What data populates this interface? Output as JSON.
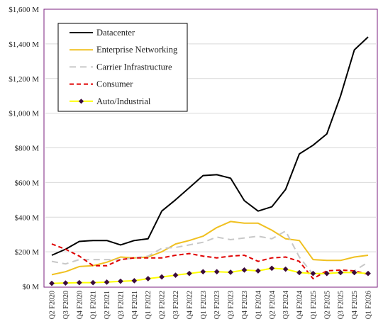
{
  "chart_data": {
    "type": "line",
    "title": "",
    "xlabel": "",
    "ylabel": "",
    "ylim": [
      0,
      1600
    ],
    "yticks": [
      0,
      200,
      400,
      600,
      800,
      1000,
      1200,
      1400,
      1600
    ],
    "ytick_labels": [
      "$0 M",
      "$200 M",
      "$400 M",
      "$600 M",
      "$800 M",
      "$1,000 M",
      "$1,200 M",
      "$1,400 M",
      "$1,600 M"
    ],
    "grid": "horizontal",
    "legend_position": "top-left",
    "categories": [
      "Q2 F2020",
      "Q3 F2020",
      "Q4 F2020",
      "Q1 F2021",
      "Q2 F2021",
      "Q3 F2021",
      "Q4 F2021",
      "Q1 F2022",
      "Q2 F2022",
      "Q3 F2022",
      "Q4 F2022",
      "Q1 F2023",
      "Q2 F2023",
      "Q3 F2023",
      "Q4 F2023",
      "Q1 F2024",
      "Q2 F2024",
      "Q3 F2024",
      "Q4 F2024",
      "Q1 F2025",
      "Q2 F2025",
      "Q3 F2025",
      "Q4 F2025",
      "Q1 F2026"
    ],
    "x_labels": [
      "Q2 F2020",
      "Q3 F2020",
      "Q4 F2020",
      "Q1 F2021",
      "Q2 F2021",
      "Q3 F2021",
      "Q4 F2021",
      "Q1 F2022",
      "Q2 F2022",
      "Q3 F2022",
      "Q4 F2022",
      "Q1 F2023",
      "Q2 F2023",
      "Q3 F2023",
      "Q4 F2023",
      "Q1 F2024",
      "Q2 F2024",
      "Q3 F2024",
      "Q4 F2024",
      "Q1 F2025",
      "Q2 F2025",
      "Q3 F2025",
      "Q4 F2025",
      "Q1 F2026"
    ],
    "frame_color": "#7b1f7f",
    "series": [
      {
        "name": "Datacenter",
        "color": "#000000",
        "style": "solid",
        "marker": "none",
        "values": [
          180,
          215,
          260,
          265,
          265,
          240,
          265,
          275,
          435,
          500,
          570,
          640,
          645,
          625,
          495,
          435,
          460,
          560,
          765,
          815,
          880,
          1100,
          1365,
          1440
        ]
      },
      {
        "name": "Enterprise Networking",
        "color": "#f0c020",
        "style": "solid",
        "marker": "none",
        "values": [
          68,
          85,
          115,
          120,
          140,
          170,
          165,
          170,
          200,
          245,
          265,
          290,
          340,
          375,
          365,
          365,
          325,
          275,
          265,
          155,
          150,
          150,
          170,
          180
        ]
      },
      {
        "name": "Carrier Infrastructure",
        "color": "#c8c8c8",
        "style": "dashed",
        "marker": "none",
        "values": [
          145,
          130,
          155,
          155,
          155,
          155,
          165,
          175,
          220,
          225,
          240,
          255,
          285,
          270,
          280,
          290,
          275,
          320,
          170,
          70,
          75,
          80,
          90,
          140
        ]
      },
      {
        "name": "Consumer",
        "color": "#e00000",
        "style": "dashed",
        "marker": "none",
        "values": [
          245,
          215,
          175,
          120,
          120,
          155,
          165,
          165,
          165,
          180,
          190,
          175,
          165,
          175,
          180,
          145,
          165,
          170,
          145,
          45,
          90,
          95,
          90,
          70
        ]
      },
      {
        "name": "Auto/Industrial",
        "color": "#ffff00",
        "style": "solid",
        "marker": "diamond",
        "marker_color": "#3a0a3a",
        "values": [
          18,
          20,
          22,
          22,
          25,
          30,
          33,
          45,
          55,
          65,
          75,
          85,
          85,
          82,
          95,
          90,
          105,
          100,
          80,
          75,
          75,
          80,
          80,
          75
        ]
      }
    ]
  }
}
